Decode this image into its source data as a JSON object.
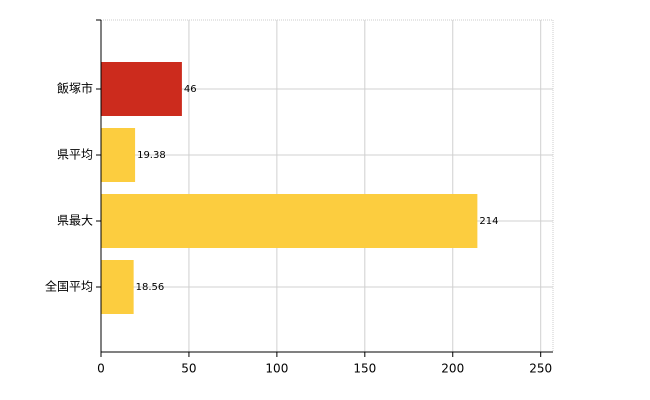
{
  "chart_data": {
    "type": "hbar",
    "categories": [
      "飯塚市",
      "県平均",
      "県最大",
      "全国平均"
    ],
    "values": [
      46,
      19.38,
      214,
      18.56
    ],
    "colors": [
      "#cc2b1d",
      "#fccd3f",
      "#fccd3f",
      "#fccd3f"
    ],
    "xlim": [
      0,
      257
    ],
    "xticks": [
      0,
      50,
      100,
      150,
      200,
      250
    ],
    "grid": true
  }
}
